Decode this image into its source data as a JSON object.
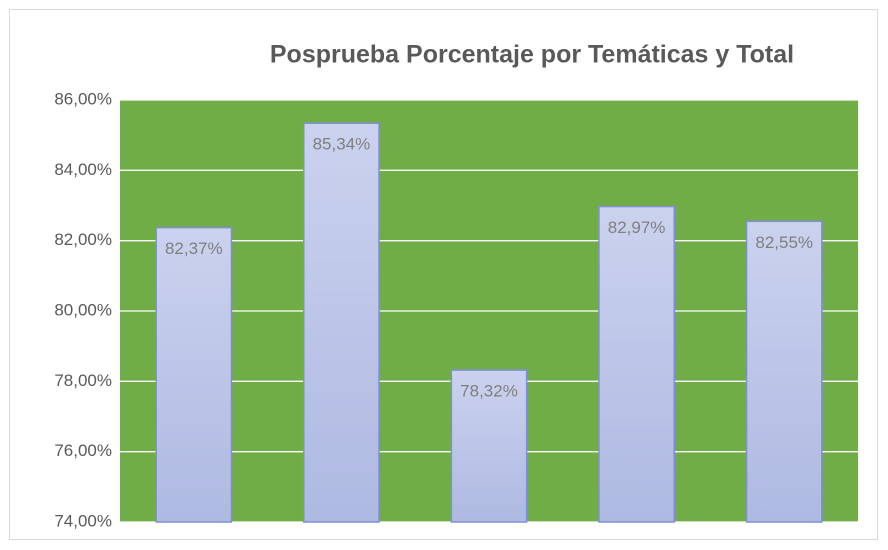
{
  "chart_data": {
    "type": "bar",
    "title": "Posprueba Porcentaje por Temáticas y Total",
    "categories": [
      null,
      null,
      null,
      null,
      null
    ],
    "values": [
      82.37,
      85.34,
      78.32,
      82.97,
      82.55
    ],
    "value_labels": [
      "82,37%",
      "85,34%",
      "78,32%",
      "82,97%",
      "82,55%"
    ],
    "color": "#c3cbeb",
    "ylim": [
      74,
      86
    ],
    "yticks": [
      {
        "value": 74,
        "label": "74,00%"
      },
      {
        "value": 76,
        "label": "76,00%"
      },
      {
        "value": 78,
        "label": "78,00%"
      },
      {
        "value": 80,
        "label": "80,00%"
      },
      {
        "value": 82,
        "label": "82,00%"
      },
      {
        "value": 84,
        "label": "84,00%"
      },
      {
        "value": 86,
        "label": "86,00%"
      }
    ],
    "grid": true,
    "plot_background": "#70ad47"
  }
}
